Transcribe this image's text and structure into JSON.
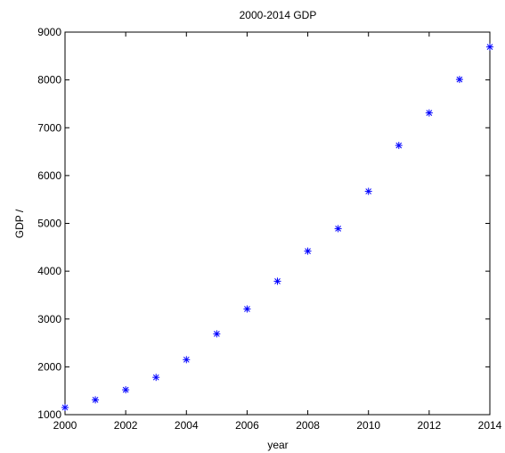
{
  "chart_data": {
    "type": "scatter",
    "title": "2000-2014 GDP",
    "xlabel": "year",
    "ylabel": "GDP /",
    "xlim": [
      2000,
      2014
    ],
    "ylim": [
      1000,
      9000
    ],
    "x_ticks": [
      "2000",
      "2002",
      "2004",
      "2006",
      "2008",
      "2010",
      "2012",
      "2014"
    ],
    "y_ticks": [
      "1000",
      "2000",
      "3000",
      "4000",
      "5000",
      "6000",
      "7000",
      "8000",
      "9000"
    ],
    "grid": false,
    "marker": "asterisk",
    "marker_color": "#0000ff",
    "series": [
      {
        "x": [
          2000,
          2001,
          2002,
          2003,
          2004,
          2005,
          2006,
          2007,
          2008,
          2009,
          2010,
          2011,
          2012,
          2013,
          2014
        ],
        "y": [
          1150,
          1310,
          1520,
          1780,
          2150,
          2690,
          3210,
          3790,
          4420,
          4890,
          5670,
          6630,
          7310,
          8010,
          8690
        ]
      }
    ]
  }
}
